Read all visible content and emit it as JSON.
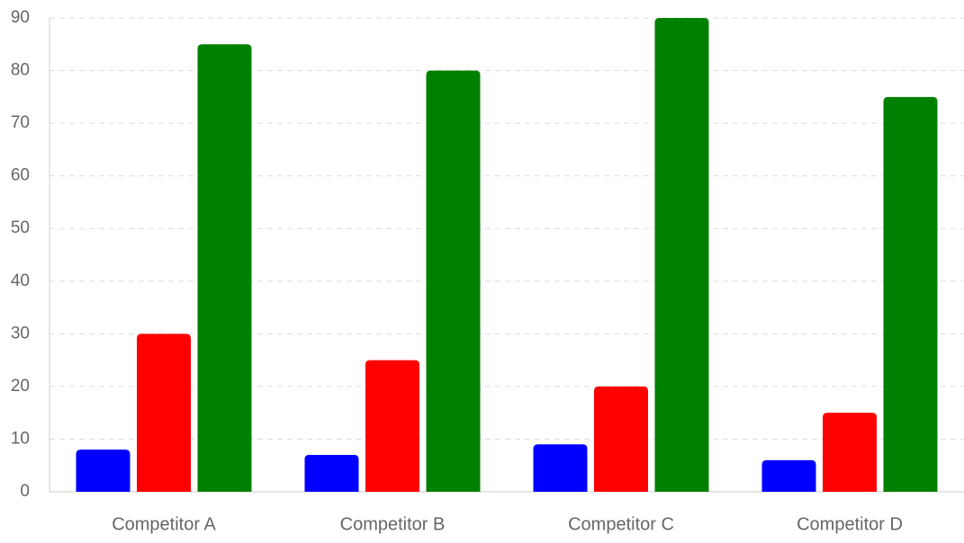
{
  "chart_data": {
    "type": "bar",
    "categories": [
      "Competitor A",
      "Competitor B",
      "Competitor C",
      "Competitor D"
    ],
    "series": [
      {
        "color": "#0000ff",
        "values": [
          8,
          7,
          9,
          6
        ]
      },
      {
        "color": "#ff0000",
        "values": [
          30,
          25,
          20,
          15
        ]
      },
      {
        "color": "#008000",
        "values": [
          85,
          80,
          90,
          75
        ]
      }
    ],
    "ylim": [
      0,
      90
    ],
    "yticks": [
      0,
      10,
      20,
      30,
      40,
      50,
      60,
      70,
      80,
      90
    ],
    "grid": true
  }
}
